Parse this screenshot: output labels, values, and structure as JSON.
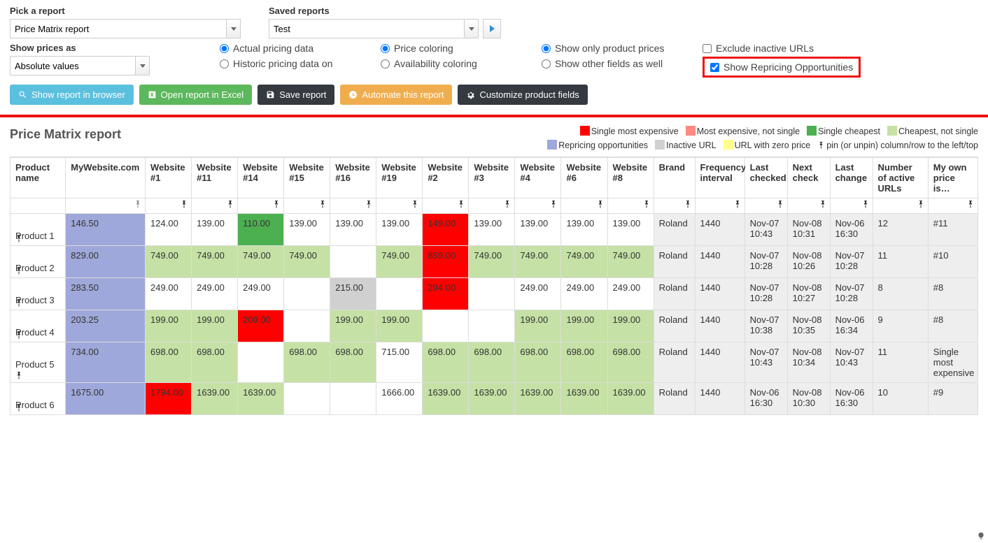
{
  "controls": {
    "pick_label": "Pick a report",
    "pick_value": "Price Matrix report",
    "saved_label": "Saved reports",
    "saved_value": "Test",
    "prices_label": "Show prices as",
    "prices_value": "Absolute values",
    "radios_a": {
      "actual": "Actual pricing data",
      "historic": "Historic pricing data on"
    },
    "radios_b": {
      "price_color": "Price coloring",
      "avail_color": "Availability coloring"
    },
    "radios_c": {
      "only_prices": "Show only product prices",
      "other_fields": "Show other fields as well"
    },
    "checks": {
      "exclude": "Exclude inactive URLs",
      "repricing": "Show Repricing Opportunities"
    }
  },
  "buttons": {
    "show": "Show report in browser",
    "excel": "Open report in Excel",
    "save": "Save report",
    "automate": "Automate this report",
    "customize": "Customize product fields"
  },
  "report_title": "Price Matrix report",
  "legend": {
    "single_exp": "Single most expensive",
    "most_exp": "Most expensive, not single",
    "single_cheap": "Single cheapest",
    "cheap_not": "Cheapest, not single",
    "repricing": "Repricing opportunities",
    "inactive": "Inactive URL",
    "zero": "URL with zero price",
    "pin": "pin (or unpin) column/row to the left/top"
  },
  "colors": {
    "single_exp": "#ff0000",
    "most_exp": "#ff8a80",
    "single_cheap": "#4caf50",
    "cheap_not": "#c5e1a5",
    "repricing": "#9fa8da",
    "inactive": "#d0d0d0",
    "zero": "#ffff8d",
    "meta_bg": "#eeeeee"
  },
  "columns": [
    {
      "key": "product",
      "label": "Product name",
      "cls": "product"
    },
    {
      "key": "my",
      "label": "MyWebsite.com",
      "cls": "mysite"
    },
    {
      "key": "w1",
      "label": "Website #1",
      "cls": "site"
    },
    {
      "key": "w11",
      "label": "Website #11",
      "cls": "site"
    },
    {
      "key": "w14",
      "label": "Website #14",
      "cls": "site"
    },
    {
      "key": "w15",
      "label": "Website #15",
      "cls": "site"
    },
    {
      "key": "w16",
      "label": "Website #16",
      "cls": "site"
    },
    {
      "key": "w19",
      "label": "Website #19",
      "cls": "site"
    },
    {
      "key": "w2",
      "label": "Website #2",
      "cls": "site"
    },
    {
      "key": "w3",
      "label": "Website #3",
      "cls": "site"
    },
    {
      "key": "w4",
      "label": "Website #4",
      "cls": "site"
    },
    {
      "key": "w6",
      "label": "Website #6",
      "cls": "site"
    },
    {
      "key": "w8",
      "label": "Website #8",
      "cls": "site"
    },
    {
      "key": "brand",
      "label": "Brand",
      "cls": "brand"
    },
    {
      "key": "freq",
      "label": "Frequency interval",
      "cls": "freq"
    },
    {
      "key": "lastchk",
      "label": "Last checked",
      "cls": "dt"
    },
    {
      "key": "nextchk",
      "label": "Next check",
      "cls": "dt"
    },
    {
      "key": "lastchg",
      "label": "Last change",
      "cls": "dt"
    },
    {
      "key": "active",
      "label": "Number of active URLs",
      "cls": "num"
    },
    {
      "key": "own",
      "label": "My own price is…",
      "cls": "own"
    }
  ],
  "rows": [
    {
      "product": "Product 1",
      "cells": {
        "my": {
          "v": "146.50",
          "c": "repricing"
        },
        "w1": {
          "v": "124.00"
        },
        "w11": {
          "v": "139.00"
        },
        "w14": {
          "v": "110.00",
          "c": "single_cheap"
        },
        "w15": {
          "v": "139.00"
        },
        "w16": {
          "v": "139.00"
        },
        "w19": {
          "v": "139.00"
        },
        "w2": {
          "v": "149.00",
          "c": "single_exp"
        },
        "w3": {
          "v": "139.00"
        },
        "w4": {
          "v": "139.00"
        },
        "w6": {
          "v": "139.00"
        },
        "w8": {
          "v": "139.00"
        },
        "brand": {
          "v": "Roland",
          "c": "meta"
        },
        "freq": {
          "v": "1440",
          "c": "meta"
        },
        "lastchk": {
          "v": "Nov-07 10:43",
          "c": "meta"
        },
        "nextchk": {
          "v": "Nov-08 10:31",
          "c": "meta"
        },
        "lastchg": {
          "v": "Nov-06 16:30",
          "c": "meta"
        },
        "active": {
          "v": "12",
          "c": "meta"
        },
        "own": {
          "v": "#11",
          "c": "meta"
        }
      }
    },
    {
      "product": "Product 2",
      "cells": {
        "my": {
          "v": "829.00",
          "c": "repricing"
        },
        "w1": {
          "v": "749.00",
          "c": "cheap_not"
        },
        "w11": {
          "v": "749.00",
          "c": "cheap_not"
        },
        "w14": {
          "v": "749.00",
          "c": "cheap_not"
        },
        "w15": {
          "v": "749.00",
          "c": "cheap_not"
        },
        "w16": {
          "v": ""
        },
        "w19": {
          "v": "749.00",
          "c": "cheap_not"
        },
        "w2": {
          "v": "859.00",
          "c": "single_exp"
        },
        "w3": {
          "v": "749.00",
          "c": "cheap_not"
        },
        "w4": {
          "v": "749.00",
          "c": "cheap_not"
        },
        "w6": {
          "v": "749.00",
          "c": "cheap_not"
        },
        "w8": {
          "v": "749.00",
          "c": "cheap_not"
        },
        "brand": {
          "v": "Roland",
          "c": "meta"
        },
        "freq": {
          "v": "1440",
          "c": "meta"
        },
        "lastchk": {
          "v": "Nov-07 10:28",
          "c": "meta"
        },
        "nextchk": {
          "v": "Nov-08 10:26",
          "c": "meta"
        },
        "lastchg": {
          "v": "Nov-07 10:28",
          "c": "meta"
        },
        "active": {
          "v": "11",
          "c": "meta"
        },
        "own": {
          "v": "#10",
          "c": "meta"
        }
      }
    },
    {
      "product": "Product 3",
      "cells": {
        "my": {
          "v": "283.50",
          "c": "repricing"
        },
        "w1": {
          "v": "249.00"
        },
        "w11": {
          "v": "249.00"
        },
        "w14": {
          "v": "249.00"
        },
        "w15": {
          "v": ""
        },
        "w16": {
          "v": "215.00",
          "c": "inactive"
        },
        "w19": {
          "v": ""
        },
        "w2": {
          "v": "294.00",
          "c": "single_exp"
        },
        "w3": {
          "v": ""
        },
        "w4": {
          "v": "249.00"
        },
        "w6": {
          "v": "249.00"
        },
        "w8": {
          "v": "249.00"
        },
        "brand": {
          "v": "Roland",
          "c": "meta"
        },
        "freq": {
          "v": "1440",
          "c": "meta"
        },
        "lastchk": {
          "v": "Nov-07 10:28",
          "c": "meta"
        },
        "nextchk": {
          "v": "Nov-08 10:27",
          "c": "meta"
        },
        "lastchg": {
          "v": "Nov-07 10:28",
          "c": "meta"
        },
        "active": {
          "v": "8",
          "c": "meta"
        },
        "own": {
          "v": "#8",
          "c": "meta"
        }
      }
    },
    {
      "product": "Product 4",
      "cells": {
        "my": {
          "v": "203.25",
          "c": "repricing"
        },
        "w1": {
          "v": "199.00",
          "c": "cheap_not"
        },
        "w11": {
          "v": "199.00",
          "c": "cheap_not"
        },
        "w14": {
          "v": "209.00",
          "c": "single_exp"
        },
        "w15": {
          "v": ""
        },
        "w16": {
          "v": "199.00",
          "c": "cheap_not"
        },
        "w19": {
          "v": "199.00",
          "c": "cheap_not"
        },
        "w2": {
          "v": ""
        },
        "w3": {
          "v": ""
        },
        "w4": {
          "v": "199.00",
          "c": "cheap_not"
        },
        "w6": {
          "v": "199.00",
          "c": "cheap_not"
        },
        "w8": {
          "v": "199.00",
          "c": "cheap_not"
        },
        "brand": {
          "v": "Roland",
          "c": "meta"
        },
        "freq": {
          "v": "1440",
          "c": "meta"
        },
        "lastchk": {
          "v": "Nov-07 10:38",
          "c": "meta"
        },
        "nextchk": {
          "v": "Nov-08 10:35",
          "c": "meta"
        },
        "lastchg": {
          "v": "Nov-06 16:34",
          "c": "meta"
        },
        "active": {
          "v": "9",
          "c": "meta"
        },
        "own": {
          "v": "#8",
          "c": "meta"
        }
      }
    },
    {
      "product": "Product 5",
      "cells": {
        "my": {
          "v": "734.00",
          "c": "repricing"
        },
        "w1": {
          "v": "698.00",
          "c": "cheap_not"
        },
        "w11": {
          "v": "698.00",
          "c": "cheap_not"
        },
        "w14": {
          "v": ""
        },
        "w15": {
          "v": "698.00",
          "c": "cheap_not"
        },
        "w16": {
          "v": "698.00",
          "c": "cheap_not"
        },
        "w19": {
          "v": "715.00"
        },
        "w2": {
          "v": "698.00",
          "c": "cheap_not"
        },
        "w3": {
          "v": "698.00",
          "c": "cheap_not"
        },
        "w4": {
          "v": "698.00",
          "c": "cheap_not"
        },
        "w6": {
          "v": "698.00",
          "c": "cheap_not"
        },
        "w8": {
          "v": "698.00",
          "c": "cheap_not"
        },
        "brand": {
          "v": "Roland",
          "c": "meta"
        },
        "freq": {
          "v": "1440",
          "c": "meta"
        },
        "lastchk": {
          "v": "Nov-07 10:43",
          "c": "meta"
        },
        "nextchk": {
          "v": "Nov-08 10:34",
          "c": "meta"
        },
        "lastchg": {
          "v": "Nov-07 10:43",
          "c": "meta"
        },
        "active": {
          "v": "11",
          "c": "meta"
        },
        "own": {
          "v": "Single most expensive",
          "c": "meta"
        }
      }
    },
    {
      "product": "Product 6",
      "cells": {
        "my": {
          "v": "1675.00",
          "c": "repricing"
        },
        "w1": {
          "v": "1794.00",
          "c": "single_exp"
        },
        "w11": {
          "v": "1639.00",
          "c": "cheap_not"
        },
        "w14": {
          "v": "1639.00",
          "c": "cheap_not"
        },
        "w15": {
          "v": ""
        },
        "w16": {
          "v": ""
        },
        "w19": {
          "v": "1666.00"
        },
        "w2": {
          "v": "1639.00",
          "c": "cheap_not"
        },
        "w3": {
          "v": "1639.00",
          "c": "cheap_not"
        },
        "w4": {
          "v": "1639.00",
          "c": "cheap_not"
        },
        "w6": {
          "v": "1639.00",
          "c": "cheap_not"
        },
        "w8": {
          "v": "1639.00",
          "c": "cheap_not"
        },
        "brand": {
          "v": "Roland",
          "c": "meta"
        },
        "freq": {
          "v": "1440",
          "c": "meta"
        },
        "lastchk": {
          "v": "Nov-06 16:30",
          "c": "meta"
        },
        "nextchk": {
          "v": "Nov-08 10:30",
          "c": "meta"
        },
        "lastchg": {
          "v": "Nov-06 16:30",
          "c": "meta"
        },
        "active": {
          "v": "10",
          "c": "meta"
        },
        "own": {
          "v": "#9",
          "c": "meta"
        }
      }
    }
  ]
}
